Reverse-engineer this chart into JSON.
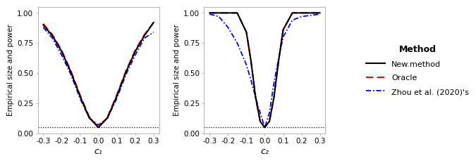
{
  "panel1": {
    "xlabel": "c₁",
    "ylabel": "Empirical size and power",
    "x": [
      -0.3,
      -0.25,
      -0.2,
      -0.15,
      -0.1,
      -0.05,
      0.0,
      0.05,
      0.1,
      0.15,
      0.2,
      0.25,
      0.3
    ],
    "new_method": [
      0.9,
      0.81,
      0.68,
      0.51,
      0.31,
      0.13,
      0.05,
      0.13,
      0.31,
      0.51,
      0.68,
      0.81,
      0.92
    ],
    "oracle": [
      0.91,
      0.82,
      0.69,
      0.52,
      0.32,
      0.14,
      0.05,
      0.14,
      0.32,
      0.52,
      0.69,
      0.82,
      0.92
    ],
    "zhou": [
      0.88,
      0.79,
      0.65,
      0.49,
      0.29,
      0.13,
      0.07,
      0.13,
      0.29,
      0.49,
      0.65,
      0.79,
      0.84
    ],
    "hline": 0.05,
    "ylim": [
      0.0,
      1.05
    ],
    "yticks": [
      0.0,
      0.25,
      0.5,
      0.75,
      1.0
    ]
  },
  "panel2": {
    "xlabel": "c₂",
    "ylabel": "Empirical size and power",
    "x": [
      -0.3,
      -0.25,
      -0.2,
      -0.15,
      -0.1,
      -0.075,
      -0.05,
      -0.025,
      0.0,
      0.025,
      0.05,
      0.075,
      0.1,
      0.15,
      0.2,
      0.25,
      0.3
    ],
    "new_method": [
      1.0,
      1.0,
      1.0,
      1.0,
      0.84,
      0.6,
      0.3,
      0.1,
      0.05,
      0.1,
      0.3,
      0.6,
      0.86,
      1.0,
      1.0,
      1.0,
      1.0
    ],
    "oracle": [
      1.0,
      1.0,
      1.0,
      1.0,
      0.84,
      0.6,
      0.3,
      0.1,
      0.05,
      0.1,
      0.3,
      0.6,
      0.86,
      1.0,
      1.0,
      1.0,
      1.0
    ],
    "zhou": [
      0.99,
      0.97,
      0.88,
      0.75,
      0.57,
      0.44,
      0.3,
      0.17,
      0.05,
      0.17,
      0.42,
      0.62,
      0.8,
      0.94,
      0.97,
      0.98,
      0.99
    ],
    "hline": 0.05,
    "ylim": [
      0.0,
      1.05
    ],
    "yticks": [
      0.0,
      0.25,
      0.5,
      0.75,
      1.0
    ]
  },
  "legend": {
    "new_method_label": "New.method",
    "oracle_label": "Oracle",
    "zhou_label": "Zhou et al. (2020)'s",
    "title": "Method"
  },
  "new_method_color": "#000000",
  "oracle_color": "#FF0000",
  "zhou_color": "#0000FF",
  "hline_color": "#000000",
  "background_color": "#FFFFFF",
  "xticks": [
    -0.3,
    -0.2,
    -0.1,
    0.0,
    0.1,
    0.2,
    0.3
  ],
  "xticklabels": [
    "-0.3",
    "-0.2",
    "-0.1",
    "0.0",
    "0.1",
    "0.2",
    "0.3"
  ]
}
